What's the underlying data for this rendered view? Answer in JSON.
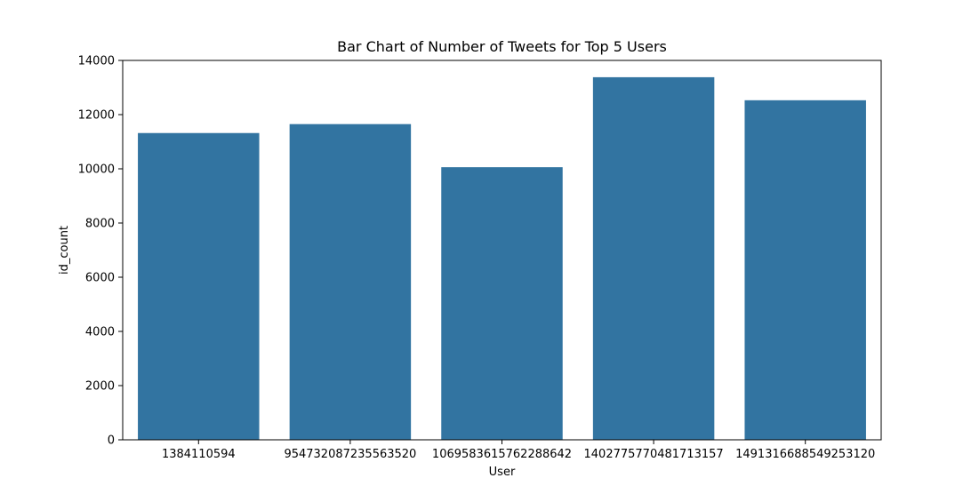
{
  "chart_data": {
    "type": "bar",
    "title": "Bar Chart of Number of Tweets for Top 5 Users",
    "xlabel": "User",
    "ylabel": "id_count",
    "categories": [
      "1384110594",
      "954732087235563520",
      "1069583615762288642",
      "1402775770481713157",
      "1491316688549253120"
    ],
    "values": [
      11320,
      11650,
      10060,
      13380,
      12530
    ],
    "ylim": [
      0,
      14000
    ],
    "yticks": [
      0,
      2000,
      4000,
      6000,
      8000,
      10000,
      12000,
      14000
    ],
    "grid": false,
    "bar_color": "#3274a1"
  }
}
